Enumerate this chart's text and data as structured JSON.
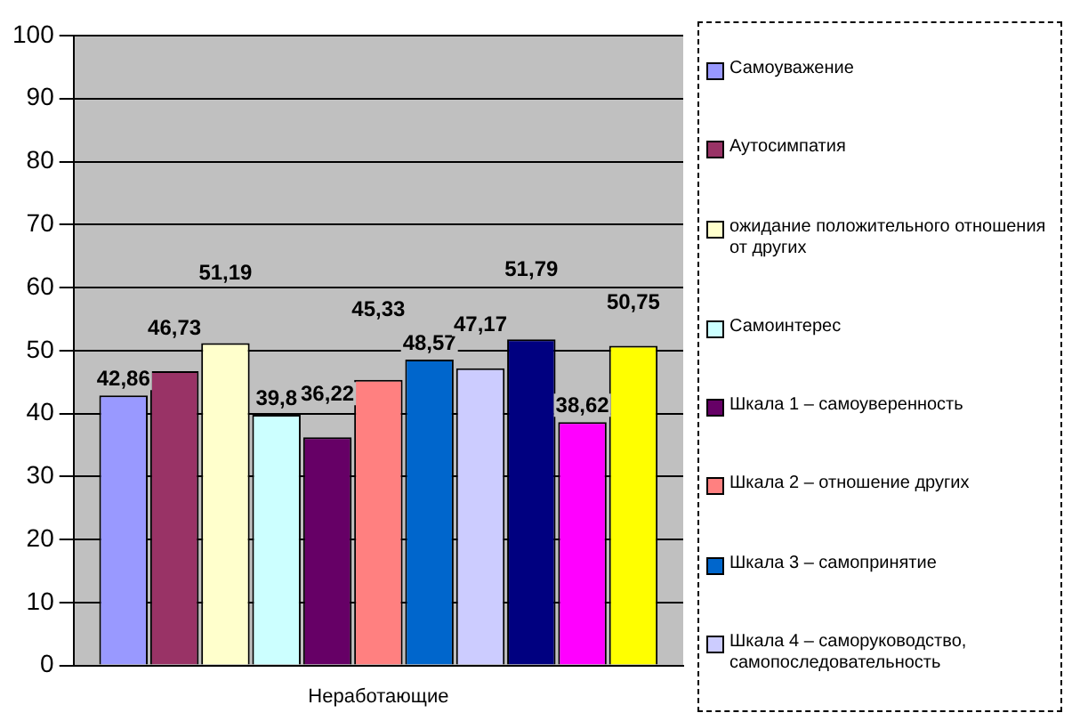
{
  "chart_data": {
    "type": "bar",
    "categories": [
      "Неработающие"
    ],
    "ylim": [
      0,
      100
    ],
    "yticks": [
      0,
      10,
      20,
      30,
      40,
      50,
      60,
      70,
      80,
      90,
      100
    ],
    "grid": "y",
    "legend": "right",
    "series": [
      {
        "name": "Самоуважение",
        "color": "#9999ff",
        "values": [
          42.86
        ],
        "value_labels": [
          "42,86"
        ]
      },
      {
        "name": "Аутосимпатия",
        "color": "#993366",
        "values": [
          46.73
        ],
        "value_labels": [
          "46,73"
        ]
      },
      {
        "name": "ожидание положительного отношения от других",
        "color": "#ffffcc",
        "values": [
          51.19
        ],
        "value_labels": [
          "51,19"
        ]
      },
      {
        "name": "Самоинтерес",
        "color": "#ccffff",
        "values": [
          39.8
        ],
        "value_labels": [
          "39,8"
        ]
      },
      {
        "name": "Шкала 1 – самоуверенность",
        "color": "#660066",
        "values": [
          36.22
        ],
        "value_labels": [
          "36,22"
        ]
      },
      {
        "name": "Шкала 2 – отношение других",
        "color": "#ff8080",
        "values": [
          45.33
        ],
        "value_labels": [
          "45,33"
        ]
      },
      {
        "name": "Шкала 3 – самопринятие",
        "color": "#0066cc",
        "values": [
          48.57
        ],
        "value_labels": [
          "48,57"
        ]
      },
      {
        "name": "Шкала 4 – саморуководство, самопоследовательность",
        "color": "#ccccff",
        "values": [
          47.17
        ],
        "value_labels": [
          "47,17"
        ]
      },
      {
        "color": "#000080",
        "values": [
          51.79
        ],
        "value_labels": [
          "51,79"
        ]
      },
      {
        "color": "#ff00ff",
        "values": [
          38.62
        ],
        "value_labels": [
          "38,62"
        ]
      },
      {
        "color": "#ffff00",
        "values": [
          50.75
        ],
        "value_labels": [
          "50,75"
        ]
      }
    ]
  }
}
